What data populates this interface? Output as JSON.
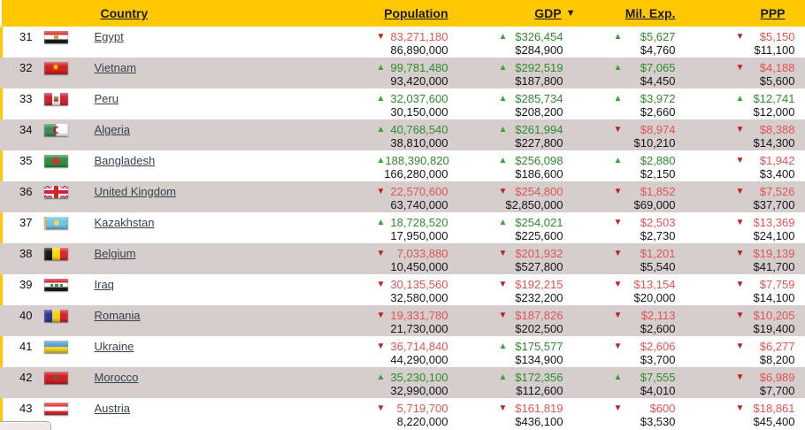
{
  "table": {
    "headers": {
      "country": "Country",
      "population": "Population",
      "gdp": "GDP",
      "mil_exp": "Mil. Exp.",
      "ppp": "PPP"
    },
    "sort": {
      "column": "gdp",
      "direction": "desc",
      "icon": "sort-desc-icon",
      "glyph": "▼"
    },
    "rows": [
      {
        "rank": "31",
        "country": "Egypt",
        "flag": {
          "code": "eg",
          "icon": "egypt-flag-icon"
        },
        "population": {
          "trend": "down",
          "current": "83,271,180",
          "previous": "86,890,000"
        },
        "gdp": {
          "trend": "up",
          "current": "$326,454",
          "previous": "$284,900"
        },
        "mil_exp": {
          "trend": "up",
          "current": "$5,627",
          "previous": "$4,760"
        },
        "ppp": {
          "trend": "down",
          "current": "$5,150",
          "previous": "$11,100"
        }
      },
      {
        "rank": "32",
        "country": "Vietnam",
        "flag": {
          "code": "vn",
          "icon": "vietnam-flag-icon"
        },
        "population": {
          "trend": "up",
          "current": "99,781,480",
          "previous": "93,420,000"
        },
        "gdp": {
          "trend": "up",
          "current": "$292,519",
          "previous": "$187,800"
        },
        "mil_exp": {
          "trend": "up",
          "current": "$7,065",
          "previous": "$4,450"
        },
        "ppp": {
          "trend": "down",
          "current": "$4,188",
          "previous": "$5,600"
        }
      },
      {
        "rank": "33",
        "country": "Peru",
        "flag": {
          "code": "pe",
          "icon": "peru-flag-icon"
        },
        "population": {
          "trend": "up",
          "current": "32,037,600",
          "previous": "30,150,000"
        },
        "gdp": {
          "trend": "up",
          "current": "$285,734",
          "previous": "$208,200"
        },
        "mil_exp": {
          "trend": "up",
          "current": "$3,972",
          "previous": "$2,660"
        },
        "ppp": {
          "trend": "up",
          "current": "$12,741",
          "previous": "$12,000"
        }
      },
      {
        "rank": "34",
        "country": "Algeria",
        "flag": {
          "code": "dz",
          "icon": "algeria-flag-icon"
        },
        "population": {
          "trend": "up",
          "current": "40,768,540",
          "previous": "38,810,000"
        },
        "gdp": {
          "trend": "up",
          "current": "$261,994",
          "previous": "$227,800"
        },
        "mil_exp": {
          "trend": "down",
          "current": "$8,974",
          "previous": "$10,210"
        },
        "ppp": {
          "trend": "down",
          "current": "$8,388",
          "previous": "$14,300"
        }
      },
      {
        "rank": "35",
        "country": "Bangladesh",
        "flag": {
          "code": "bd",
          "icon": "bangladesh-flag-icon"
        },
        "population": {
          "trend": "up",
          "current": "188,390,820",
          "previous": "166,280,000"
        },
        "gdp": {
          "trend": "up",
          "current": "$256,098",
          "previous": "$186,600"
        },
        "mil_exp": {
          "trend": "up",
          "current": "$2,880",
          "previous": "$2,150"
        },
        "ppp": {
          "trend": "down",
          "current": "$1,942",
          "previous": "$3,400"
        }
      },
      {
        "rank": "36",
        "country": "United Kingdom",
        "flag": {
          "code": "gb",
          "icon": "united-kingdom-flag-icon"
        },
        "population": {
          "trend": "down",
          "current": "22,570,600",
          "previous": "63,740,000"
        },
        "gdp": {
          "trend": "down",
          "current": "$254,800",
          "previous": "$2,850,000"
        },
        "mil_exp": {
          "trend": "down",
          "current": "$1,852",
          "previous": "$69,000"
        },
        "ppp": {
          "trend": "down",
          "current": "$7,526",
          "previous": "$37,700"
        }
      },
      {
        "rank": "37",
        "country": "Kazakhstan",
        "flag": {
          "code": "kz",
          "icon": "kazakhstan-flag-icon"
        },
        "population": {
          "trend": "up",
          "current": "18,728,520",
          "previous": "17,950,000"
        },
        "gdp": {
          "trend": "up",
          "current": "$254,021",
          "previous": "$225,600"
        },
        "mil_exp": {
          "trend": "down",
          "current": "$2,503",
          "previous": "$2,730"
        },
        "ppp": {
          "trend": "down",
          "current": "$13,369",
          "previous": "$24,100"
        }
      },
      {
        "rank": "38",
        "country": "Belgium",
        "flag": {
          "code": "be",
          "icon": "belgium-flag-icon"
        },
        "population": {
          "trend": "down",
          "current": "7,033,880",
          "previous": "10,450,000"
        },
        "gdp": {
          "trend": "down",
          "current": "$201,932",
          "previous": "$527,800"
        },
        "mil_exp": {
          "trend": "down",
          "current": "$1,201",
          "previous": "$5,540"
        },
        "ppp": {
          "trend": "down",
          "current": "$19,139",
          "previous": "$41,700"
        }
      },
      {
        "rank": "39",
        "country": "Iraq",
        "flag": {
          "code": "iq",
          "icon": "iraq-flag-icon"
        },
        "population": {
          "trend": "down",
          "current": "30,135,560",
          "previous": "32,580,000"
        },
        "gdp": {
          "trend": "down",
          "current": "$192,215",
          "previous": "$232,200"
        },
        "mil_exp": {
          "trend": "down",
          "current": "$13,154",
          "previous": "$20,000"
        },
        "ppp": {
          "trend": "down",
          "current": "$7,759",
          "previous": "$14,100"
        }
      },
      {
        "rank": "40",
        "country": "Romania",
        "flag": {
          "code": "ro",
          "icon": "romania-flag-icon"
        },
        "population": {
          "trend": "down",
          "current": "19,331,780",
          "previous": "21,730,000"
        },
        "gdp": {
          "trend": "down",
          "current": "$187,826",
          "previous": "$202,500"
        },
        "mil_exp": {
          "trend": "down",
          "current": "$2,113",
          "previous": "$2,600"
        },
        "ppp": {
          "trend": "down",
          "current": "$10,205",
          "previous": "$19,400"
        }
      },
      {
        "rank": "41",
        "country": "Ukraine",
        "flag": {
          "code": "ua",
          "icon": "ukraine-flag-icon"
        },
        "population": {
          "trend": "down",
          "current": "36,714,840",
          "previous": "44,290,000"
        },
        "gdp": {
          "trend": "up",
          "current": "$175,577",
          "previous": "$134,900"
        },
        "mil_exp": {
          "trend": "down",
          "current": "$2,606",
          "previous": "$3,700"
        },
        "ppp": {
          "trend": "down",
          "current": "$6,277",
          "previous": "$8,200"
        }
      },
      {
        "rank": "42",
        "country": "Morocco",
        "flag": {
          "code": "ma",
          "icon": "morocco-flag-icon"
        },
        "population": {
          "trend": "up",
          "current": "35,230,100",
          "previous": "32,990,000"
        },
        "gdp": {
          "trend": "up",
          "current": "$172,356",
          "previous": "$112,600"
        },
        "mil_exp": {
          "trend": "up",
          "current": "$7,555",
          "previous": "$4,010"
        },
        "ppp": {
          "trend": "down",
          "current": "$6,989",
          "previous": "$7,700"
        }
      },
      {
        "rank": "43",
        "country": "Austria",
        "flag": {
          "code": "at",
          "icon": "austria-flag-icon"
        },
        "population": {
          "trend": "down",
          "current": "5,719,700",
          "previous": "8,220,000"
        },
        "gdp": {
          "trend": "down",
          "current": "$161,819",
          "previous": "$436,100"
        },
        "mil_exp": {
          "trend": "down",
          "current": "$600",
          "previous": "$3,530"
        },
        "ppp": {
          "trend": "down",
          "current": "$18,861",
          "previous": "$45,400"
        }
      }
    ]
  },
  "glyphs": {
    "up": "▲",
    "down": "▼"
  },
  "colors": {
    "header_bg": "#ffc800",
    "row_alt_bg": "#d5cecc",
    "value_up": "#2e8b2e",
    "value_down": "#e05454",
    "arrow_up": "#3ca13c",
    "arrow_down": "#c22020",
    "country_link": "#39404e"
  }
}
